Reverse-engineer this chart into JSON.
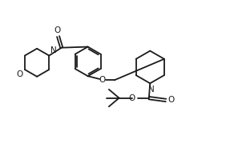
{
  "bg_color": "#ffffff",
  "line_color": "#1a1a1a",
  "line_width": 1.3,
  "fig_width": 2.87,
  "fig_height": 1.99,
  "dpi": 100,
  "xlim": [
    0,
    10
  ],
  "ylim": [
    0,
    7
  ]
}
